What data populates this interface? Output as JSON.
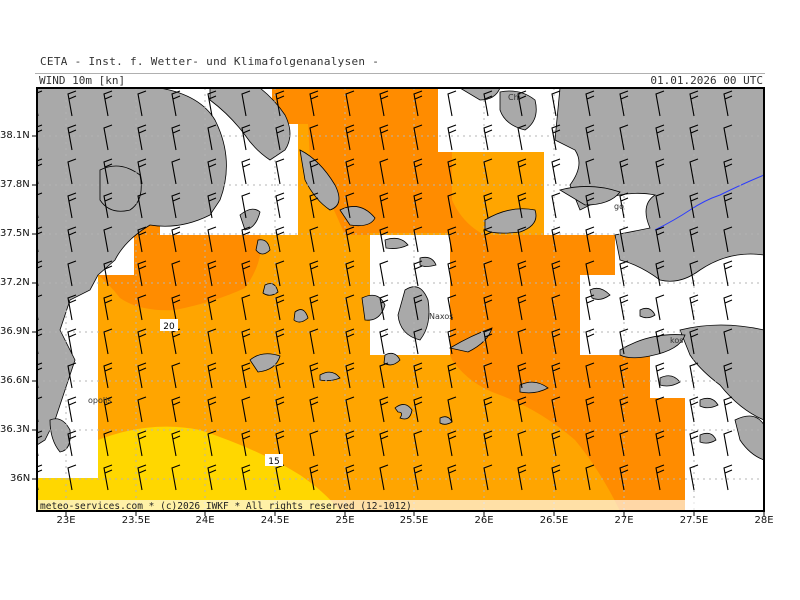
{
  "header": {
    "institute": "CETA - Inst. f. Wetter- und Klimafolgenanalysen -",
    "parameter": "WIND 10m [kn]",
    "valid_time": "01.01.2026 00 UTC"
  },
  "axes": {
    "lat_labels": [
      "38.1N",
      "37.8N",
      "37.5N",
      "37.2N",
      "36.9N",
      "36.6N",
      "36.3N",
      "36N"
    ],
    "lon_labels": [
      "23E",
      "23.5E",
      "24E",
      "24.5E",
      "25E",
      "25.5E",
      "26E",
      "26.5E",
      "27E",
      "27.5E",
      "28E"
    ]
  },
  "contour_labels": [
    "20",
    "15"
  ],
  "place_labels": [
    "Naxos",
    "Chi",
    "go",
    "kos",
    "opolis"
  ],
  "footer": "meteo-services.com * (c)2026 IWKF * All rights reserved (12-1012)",
  "colors": {
    "land": "#a9a9a9",
    "sea": "#ffffff",
    "wind_15_20": "#ffa500",
    "wind_20_25": "#ff8c00",
    "wind_10_15": "#ffd700",
    "grid": "#b4b4b4",
    "border": "#000000"
  }
}
